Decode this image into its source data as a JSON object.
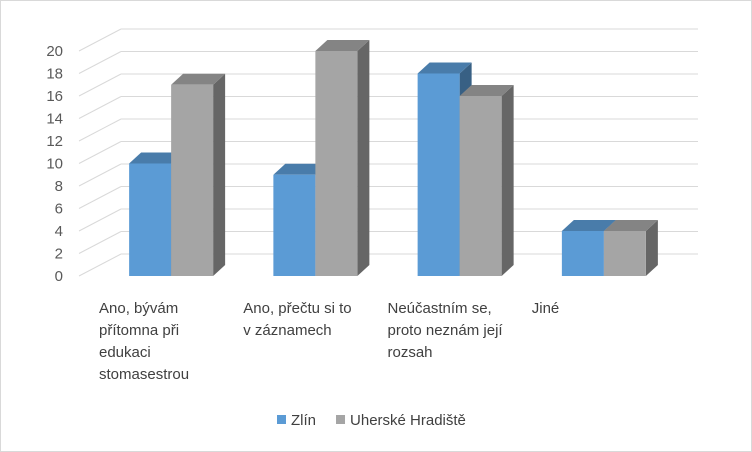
{
  "chart_data": {
    "type": "bar",
    "style": "3d-clustered-column",
    "categories": [
      [
        "Ano, bývám",
        "přítomna při",
        "edukaci",
        "stomasestrou"
      ],
      [
        "Ano, přečtu si to",
        "v záznamech"
      ],
      [
        "Neúčastním se,",
        "proto neznám její",
        "rozsah"
      ],
      [
        "Jiné"
      ]
    ],
    "series": [
      {
        "name": "Zlín",
        "values": [
          10,
          9,
          18,
          4
        ],
        "color": "#5b9bd5"
      },
      {
        "name": "Uherské Hradiště",
        "values": [
          17,
          20,
          16,
          4
        ],
        "color": "#a5a5a5"
      }
    ],
    "y_ticks": [
      "0",
      "2",
      "4",
      "6",
      "8",
      "10",
      "12",
      "14",
      "16",
      "18",
      "20"
    ],
    "ylim": [
      0,
      20
    ],
    "grid": true,
    "legend_position": "bottom"
  }
}
